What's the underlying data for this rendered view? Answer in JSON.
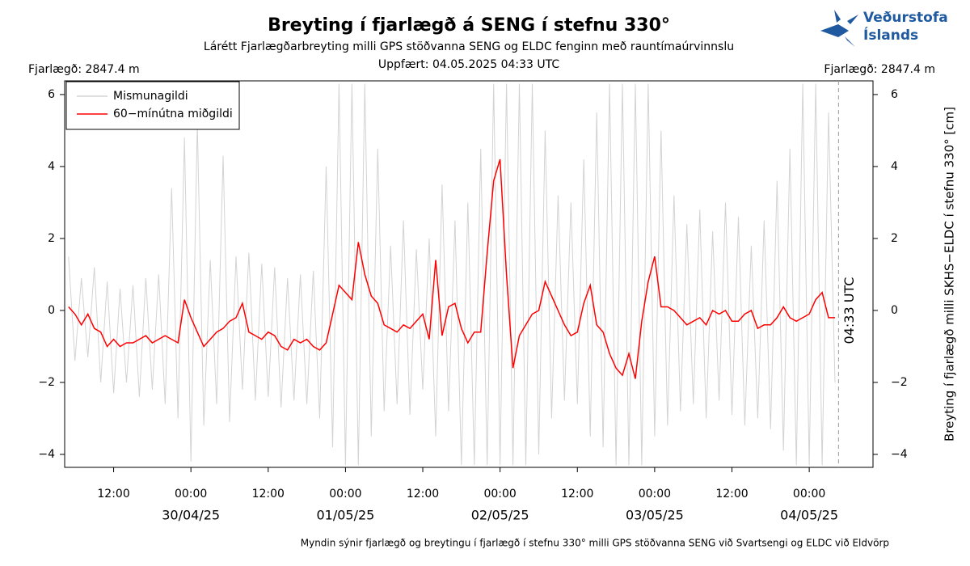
{
  "header": {
    "logo_line1": "Veðurstofa",
    "logo_line2": "Íslands"
  },
  "chart_data": {
    "type": "line",
    "title": "Breyting í fjarlægð á SENG í stefnu 330°",
    "subtitle": "Lárétt Fjarlægðarbreyting milli GPS stöðvanna SENG og ELDC fenginn með rauntímaúrvinnslu",
    "updated": "Uppfært: 04.05.2025 04:33 UTC",
    "distance_label": "Fjarlægð: 2847.4 m",
    "y_label": "Breyting í fjarlægð milli SKHS−ELDC í stefnu 330° [cm]",
    "footnote": "Myndin sýnir fjarlægð og breytingu í fjarlægð í stefnu 330° milli GPS stöðvanna SENG við Svartsengi og ELDC við Eldvörp",
    "legend": "upper left",
    "grid": false,
    "now_marker": {
      "value": "2025-05-04 04:33",
      "label": "04:33 UTC"
    },
    "xlim": [
      "2025-04-29 04:24",
      "2025-05-04 09:54"
    ],
    "xticks": [
      {
        "value": "2025-04-29 12:00",
        "label": "12:00"
      },
      {
        "value": "2025-04-30 00:00",
        "label": "00:00"
      },
      {
        "value": "2025-04-30 12:00",
        "label": "12:00"
      },
      {
        "value": "2025-05-01 00:00",
        "label": "00:00"
      },
      {
        "value": "2025-05-01 12:00",
        "label": "12:00"
      },
      {
        "value": "2025-05-02 00:00",
        "label": "00:00"
      },
      {
        "value": "2025-05-02 12:00",
        "label": "12:00"
      },
      {
        "value": "2025-05-03 00:00",
        "label": "00:00"
      },
      {
        "value": "2025-05-03 12:00",
        "label": "12:00"
      },
      {
        "value": "2025-05-04 00:00",
        "label": "00:00"
      }
    ],
    "date_labels": [
      {
        "value": "2025-04-30 00:00",
        "label": "30/04/25"
      },
      {
        "value": "2025-05-01 00:00",
        "label": "01/05/25"
      },
      {
        "value": "2025-05-02 00:00",
        "label": "02/05/25"
      },
      {
        "value": "2025-05-03 00:00",
        "label": "03/05/25"
      },
      {
        "value": "2025-05-04 00:00",
        "label": "04/05/25"
      }
    ],
    "ylim": [
      -4.36,
      6.38
    ],
    "yticks": [
      {
        "value": -4,
        "label": "−4"
      },
      {
        "value": -2,
        "label": "−2"
      },
      0,
      2,
      4,
      6
    ],
    "x": [
      "2025-04-29 05:00",
      "2025-04-29 06:00",
      "2025-04-29 07:00",
      "2025-04-29 08:00",
      "2025-04-29 09:00",
      "2025-04-29 10:00",
      "2025-04-29 11:00",
      "2025-04-29 12:00",
      "2025-04-29 13:00",
      "2025-04-29 14:00",
      "2025-04-29 15:00",
      "2025-04-29 16:00",
      "2025-04-29 17:00",
      "2025-04-29 18:00",
      "2025-04-29 19:00",
      "2025-04-29 20:00",
      "2025-04-29 21:00",
      "2025-04-29 22:00",
      "2025-04-29 23:00",
      "2025-04-30 00:00",
      "2025-04-30 01:00",
      "2025-04-30 02:00",
      "2025-04-30 03:00",
      "2025-04-30 04:00",
      "2025-04-30 05:00",
      "2025-04-30 06:00",
      "2025-04-30 07:00",
      "2025-04-30 08:00",
      "2025-04-30 09:00",
      "2025-04-30 10:00",
      "2025-04-30 11:00",
      "2025-04-30 12:00",
      "2025-04-30 13:00",
      "2025-04-30 14:00",
      "2025-04-30 15:00",
      "2025-04-30 16:00",
      "2025-04-30 17:00",
      "2025-04-30 18:00",
      "2025-04-30 19:00",
      "2025-04-30 20:00",
      "2025-04-30 21:00",
      "2025-04-30 22:00",
      "2025-04-30 23:00",
      "2025-05-01 00:00",
      "2025-05-01 01:00",
      "2025-05-01 02:00",
      "2025-05-01 03:00",
      "2025-05-01 04:00",
      "2025-05-01 05:00",
      "2025-05-01 06:00",
      "2025-05-01 07:00",
      "2025-05-01 08:00",
      "2025-05-01 09:00",
      "2025-05-01 10:00",
      "2025-05-01 11:00",
      "2025-05-01 12:00",
      "2025-05-01 13:00",
      "2025-05-01 14:00",
      "2025-05-01 15:00",
      "2025-05-01 16:00",
      "2025-05-01 17:00",
      "2025-05-01 18:00",
      "2025-05-01 19:00",
      "2025-05-01 20:00",
      "2025-05-01 21:00",
      "2025-05-01 22:00",
      "2025-05-01 23:00",
      "2025-05-02 00:00",
      "2025-05-02 01:00",
      "2025-05-02 02:00",
      "2025-05-02 03:00",
      "2025-05-02 04:00",
      "2025-05-02 05:00",
      "2025-05-02 06:00",
      "2025-05-02 07:00",
      "2025-05-02 08:00",
      "2025-05-02 09:00",
      "2025-05-02 10:00",
      "2025-05-02 11:00",
      "2025-05-02 12:00",
      "2025-05-02 13:00",
      "2025-05-02 14:00",
      "2025-05-02 15:00",
      "2025-05-02 16:00",
      "2025-05-02 17:00",
      "2025-05-02 18:00",
      "2025-05-02 19:00",
      "2025-05-02 20:00",
      "2025-05-02 21:00",
      "2025-05-02 22:00",
      "2025-05-02 23:00",
      "2025-05-03 00:00",
      "2025-05-03 01:00",
      "2025-05-03 02:00",
      "2025-05-03 03:00",
      "2025-05-03 04:00",
      "2025-05-03 05:00",
      "2025-05-03 06:00",
      "2025-05-03 07:00",
      "2025-05-03 08:00",
      "2025-05-03 09:00",
      "2025-05-03 10:00",
      "2025-05-03 11:00",
      "2025-05-03 12:00",
      "2025-05-03 13:00",
      "2025-05-03 14:00",
      "2025-05-03 15:00",
      "2025-05-03 16:00",
      "2025-05-03 17:00",
      "2025-05-03 18:00",
      "2025-05-03 19:00",
      "2025-05-03 20:00",
      "2025-05-03 21:00",
      "2025-05-03 22:00",
      "2025-05-03 23:00",
      "2025-05-04 00:00",
      "2025-05-04 01:00",
      "2025-05-04 02:00",
      "2025-05-04 03:00",
      "2025-05-04 04:00"
    ],
    "series": [
      {
        "name": "Mismunagildi",
        "color": "#d3d3d3",
        "values": [
          1.5,
          -1.4,
          0.9,
          -1.3,
          1.2,
          -2.0,
          0.8,
          -2.3,
          0.6,
          -2.0,
          0.7,
          -2.4,
          0.9,
          -2.2,
          1.0,
          -2.6,
          3.4,
          -3.0,
          4.8,
          -4.2,
          5.2,
          -3.2,
          1.4,
          -2.6,
          4.3,
          -3.1,
          1.5,
          -2.2,
          1.6,
          -2.5,
          1.3,
          -2.4,
          1.2,
          -2.7,
          0.9,
          -2.5,
          1.0,
          -2.6,
          1.1,
          -3.0,
          4.0,
          -3.8,
          6.3,
          -4.3,
          6.3,
          -4.3,
          6.3,
          -3.5,
          4.5,
          -2.8,
          1.8,
          -2.6,
          2.5,
          -2.9,
          1.7,
          -2.2,
          2.0,
          -3.5,
          3.5,
          -2.8,
          2.5,
          -4.3,
          3.0,
          -4.3,
          4.5,
          -4.3,
          6.3,
          -4.3,
          6.3,
          -4.3,
          6.3,
          -4.3,
          6.3,
          -4.0,
          5.0,
          -3.0,
          3.2,
          -2.5,
          3.0,
          -2.6,
          4.2,
          -3.5,
          5.5,
          -3.8,
          6.3,
          -4.3,
          6.3,
          -4.3,
          6.3,
          -4.3,
          6.3,
          -3.5,
          5.0,
          -3.2,
          3.2,
          -2.8,
          2.4,
          -2.6,
          2.8,
          -3.0,
          2.2,
          -2.5,
          3.0,
          -2.9,
          2.6,
          -3.2,
          1.8,
          -3.0,
          2.5,
          -3.3,
          3.6,
          -3.9,
          4.5,
          -4.3,
          6.3,
          -4.3,
          6.3,
          -4.3,
          5.5,
          -2.0
        ]
      },
      {
        "name": "60−mínútna miðgildi",
        "color": "#ff0000",
        "values": [
          0.1,
          -0.1,
          -0.4,
          -0.1,
          -0.5,
          -0.6,
          -1.0,
          -0.8,
          -1.0,
          -0.9,
          -0.9,
          -0.8,
          -0.7,
          -0.9,
          -0.8,
          -0.7,
          -0.8,
          -0.9,
          0.3,
          -0.2,
          -0.6,
          -1.0,
          -0.8,
          -0.6,
          -0.5,
          -0.3,
          -0.2,
          0.2,
          -0.6,
          -0.7,
          -0.8,
          -0.6,
          -0.7,
          -1.0,
          -1.1,
          -0.8,
          -0.9,
          -0.8,
          -1.0,
          -1.1,
          -0.9,
          -0.1,
          0.7,
          0.5,
          0.3,
          1.9,
          1.0,
          0.4,
          0.2,
          -0.4,
          -0.5,
          -0.6,
          -0.4,
          -0.5,
          -0.3,
          -0.1,
          -0.8,
          1.4,
          -0.7,
          0.1,
          0.2,
          -0.5,
          -0.9,
          -0.6,
          -0.6,
          1.6,
          3.6,
          4.2,
          1.0,
          -1.6,
          -0.7,
          -0.4,
          -0.1,
          0.0,
          0.8,
          0.4,
          0.0,
          -0.4,
          -0.7,
          -0.6,
          0.2,
          0.7,
          -0.4,
          -0.6,
          -1.2,
          -1.6,
          -1.8,
          -1.2,
          -1.9,
          -0.3,
          0.8,
          1.5,
          0.1,
          0.1,
          0.0,
          -0.2,
          -0.4,
          -0.3,
          -0.2,
          -0.4,
          0.0,
          -0.1,
          0.0,
          -0.3,
          -0.3,
          -0.1,
          0.0,
          -0.5,
          -0.4,
          -0.4,
          -0.2,
          0.1,
          -0.2,
          -0.3,
          -0.2,
          -0.1,
          0.3,
          0.5,
          -0.2,
          -0.2
        ]
      }
    ]
  }
}
